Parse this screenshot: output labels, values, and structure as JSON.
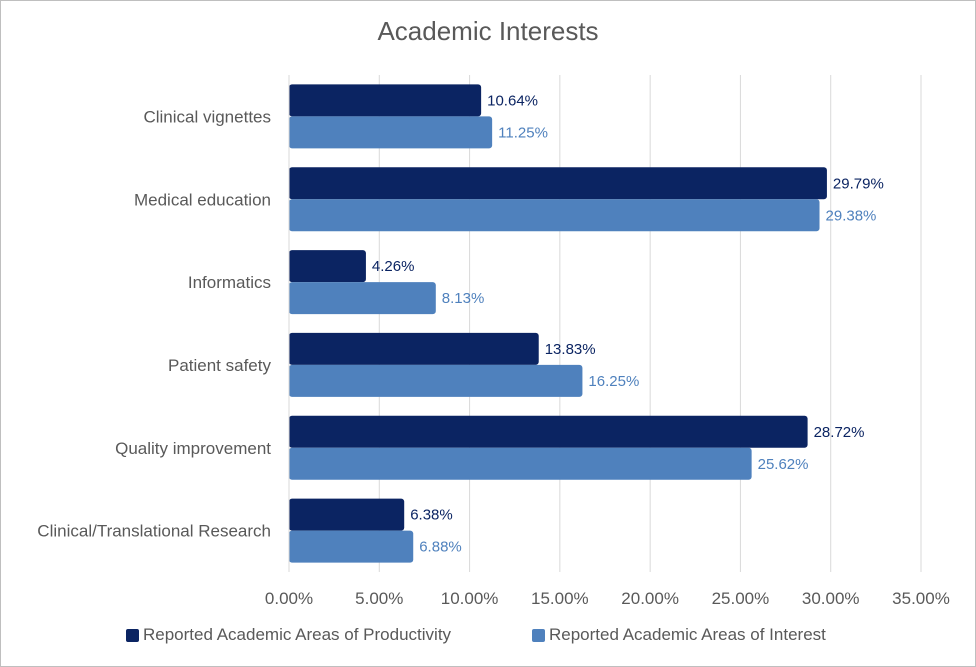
{
  "chart_data": {
    "type": "bar",
    "orientation": "horizontal",
    "title": "Academic Interests",
    "xlabel": "",
    "ylabel": "",
    "categories": [
      "Clinical vignettes",
      "Medical education",
      "Informatics",
      "Patient safety",
      "Quality improvement",
      "Clinical/Translational Research"
    ],
    "series": [
      {
        "name": "Reported Academic Areas of Productivity",
        "values": [
          10.64,
          29.79,
          4.26,
          13.83,
          28.72,
          6.38
        ],
        "color": "#0b2462"
      },
      {
        "name": "Reported Academic Areas of Interest",
        "values": [
          11.25,
          29.38,
          8.13,
          16.25,
          25.62,
          6.88
        ],
        "color": "#4f81bd"
      }
    ],
    "data_labels": [
      [
        "10.64%",
        "29.79%",
        "4.26%",
        "13.83%",
        "28.72%",
        "6.38%"
      ],
      [
        "11.25%",
        "29.38%",
        "8.13%",
        "16.25%",
        "25.62%",
        "6.88%"
      ]
    ],
    "xlim": [
      0,
      35
    ],
    "xticks": [
      0,
      5,
      10,
      15,
      20,
      25,
      30,
      35
    ],
    "xtick_labels": [
      "0.00%",
      "5.00%",
      "10.00%",
      "15.00%",
      "20.00%",
      "25.00%",
      "30.00%",
      "35.00%"
    ],
    "grid": true,
    "legend_position": "bottom"
  }
}
